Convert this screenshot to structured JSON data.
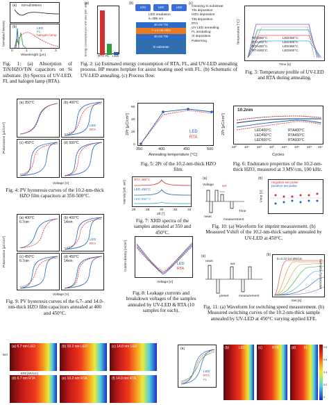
{
  "fig1": {
    "a_label": "(a)",
    "a_legend": "82%@395nm",
    "b_label": "(b)",
    "ylabel": "Normalized intensity",
    "xlabel": "Wavelength [μm]",
    "x_ticks": [
      "0",
      "1",
      "2",
      "3"
    ],
    "legend": [
      "LED",
      "FL",
      "halogen lamp"
    ],
    "caption": "Fig. 1: (a) Absorption of TiN/HZO/TiN capacitors on Si substrate. (b) Spectra of UV-LED, FL and halogen lamp (RTA)."
  },
  "fig2": {
    "a_label": "(a)",
    "b_label": "(b)",
    "c_label": "(c)",
    "ylabel": "Energy consumption per unit area [arb. unit]",
    "categories": [
      "RTA",
      "FL",
      "LED"
    ],
    "bar_values": [
      10,
      2.5,
      0.6
    ],
    "stack_top": [
      "LED",
      "LED",
      "LED"
    ],
    "irradiation": "LED irradiation",
    "lambda": "λ=395 nm",
    "layers": [
      "30 nm TiN",
      "7~14 nm HZO",
      "30 nm TiN",
      "Si substrate"
    ],
    "process_flow": [
      "Cleaning Si substrate",
      "TiN deposition",
      "HZO deposition",
      "TiN deposition",
      "RTA",
      "UV LED annealing",
      "FL annealing",
      "Al deposition",
      "Patterning"
    ],
    "caption": "Fig. 2: (a) Estimated energy consumption of RTA, FL, and UV-LED annealing process. HP means hotplate for assist heating used with FL. (b) Schematic of UV-LED annealing. (c) Process flow."
  },
  "fig3": {
    "ylabel": "Temperature [°C]",
    "xlabel": "Time [s]",
    "legend": [
      "RTA350°C",
      "LED350°C",
      "RTA400°C",
      "LED400°C",
      "RTA450°C",
      "LED450°C",
      "RTA500°C",
      "LED500°C"
    ],
    "caption": "Fig. 3: Temperature profile of UV-LED and RTA during annealing."
  },
  "fig4": {
    "panels": [
      "(a) 350°C",
      "(b) 400°C",
      "(c) 450°C",
      "(d) 500°C"
    ],
    "ylabel": "Polarization [μC/cm²]",
    "xlabel": "Voltage [V]",
    "legend": [
      "LED",
      "RTA"
    ],
    "x_ticks": [
      "-2",
      "-1",
      "0",
      "1",
      "2"
    ],
    "caption": "Fig. 4: PV hysteresis curves of the 10.2-nm-thick HZO film capacitors at 350-500°C."
  },
  "fig5": {
    "ylabel": "2Pr [μC/cm²]",
    "xlabel": "Annealing temperature [°C]",
    "x_ticks": [
      "350",
      "400",
      "450",
      "500"
    ],
    "y_ticks": [
      "0",
      "20",
      "40",
      "60"
    ],
    "legend": [
      "LED",
      "RTA"
    ],
    "caption": "Fig. 5: 2Pr of the 10.2-nm-thick HZO film."
  },
  "fig6": {
    "title": "10.2nm",
    "ylabel": "2Pr [μC/cm²]",
    "xlabel": "Cycles",
    "y_ticks": [
      "0",
      "20",
      "40",
      "60"
    ],
    "x_ticks": [
      "10⁰",
      "10¹",
      "10²",
      "10³",
      "10⁴",
      "10⁵",
      "10⁶",
      "10⁷"
    ],
    "legend": [
      "LED400°C",
      "RTA400°C",
      "LED450°C",
      "RTA450°C",
      "LED500°C",
      "RTA500°C"
    ],
    "caption": "Fig. 6: Endurance properties of the 10.2-nm-thick HZO, measured at 3 MV/cm, 100 kHz."
  },
  "fig7": {
    "traces": [
      "RTA 450°C",
      "LED 450°C",
      "LED 350°C"
    ],
    "ylabel": "Intensity [arb. unit]",
    "xlabel": "2θ [°]",
    "x_ticks": [
      "26",
      "28",
      "30",
      "32",
      "34"
    ],
    "caption": "Fig. 7: XRD spectra of the samples annealed at 350 and 450°C."
  },
  "fig8": {
    "ylabel": "Current density [A/cm²]",
    "xlabel": "Voltage [V]",
    "legend": [
      "LED",
      "RTA"
    ],
    "caption": "Fig. 8: Leakage currents and breakdown voltages of the samples annealed by UV-LED & RTA (10 samples for each)."
  },
  "fig9": {
    "panels": [
      "(a) 400°C 6.7nm",
      "(b) 400°C 14nm",
      "(c) 450°C 6.7nm",
      "(d) 450°C 14nm"
    ],
    "ylabel": "Polarization [μC/cm²]",
    "xlabel": "Voltage [V]",
    "legend": [
      "LED",
      "RTA"
    ],
    "caption": "Fig. 9: PV hysteresis curves of the 6.7- and 14.0-nm-thick HZO film capacitors annealed at 400 and 450°C."
  },
  "fig10": {
    "a_label": "(a)",
    "b_label": "(b)",
    "voltage": "Voltage",
    "set": "set",
    "reset": "reset",
    "measurement": "measurement",
    "time": "Time",
    "legend": [
      "negative set pulse",
      "positive set pulse"
    ],
    "ylabel": "Vimp [V]",
    "caption": "Fig. 10: (a) Waveform for imprint measurement. (b) Measured Vshift of the 10.2-nm-thick sample annealed by UV-LED at 450°C."
  },
  "fig11": {
    "a_label": "(a)",
    "b_label": "(b)",
    "reset": "reset",
    "set": "set",
    "preset": "preset",
    "measurement": "measurement",
    "annot": "E=0.12-3.0 MV/cm",
    "ylabel": "Normalized polarization",
    "xlabel": "tset [s]",
    "caption": "Fig. 11: (a) Waveform for switching speed measurement. (b) Measured switching curves of the 10.2-nm-thick sample annealed by UV-LED at 450°C varying applied EFE."
  },
  "fig12": {
    "panels": [
      "(a) 6.7 nm LED",
      "(b) 10.2 nm LED",
      "(c) 14.0 nm LED",
      "(d) 6.7 nm RTA",
      "(e) 10.2 nm RTA",
      "(f) 14.0 nm RTA"
    ],
    "xlabel": "EFE [MV/cm]",
    "ylabel": "tset"
  },
  "fig13": {
    "a_label": "(a)",
    "b_label": "(b)",
    "c_label": "(c)",
    "d_label": "(d)",
    "b_title": "LED",
    "c_title": "RTA",
    "d_title": "FL",
    "legend": [
      "LED",
      "RTA",
      "FL"
    ],
    "colorbar": [
      "0",
      "0.2",
      "0.4",
      "0.6",
      "0.8"
    ]
  },
  "colors": {
    "led": "#1f5fbf",
    "rta": "#d32f2f",
    "fl": "#2e9e3a",
    "hzo": "#e8791e",
    "tin": "#2d6bc9",
    "si": "#2f6fb0"
  }
}
